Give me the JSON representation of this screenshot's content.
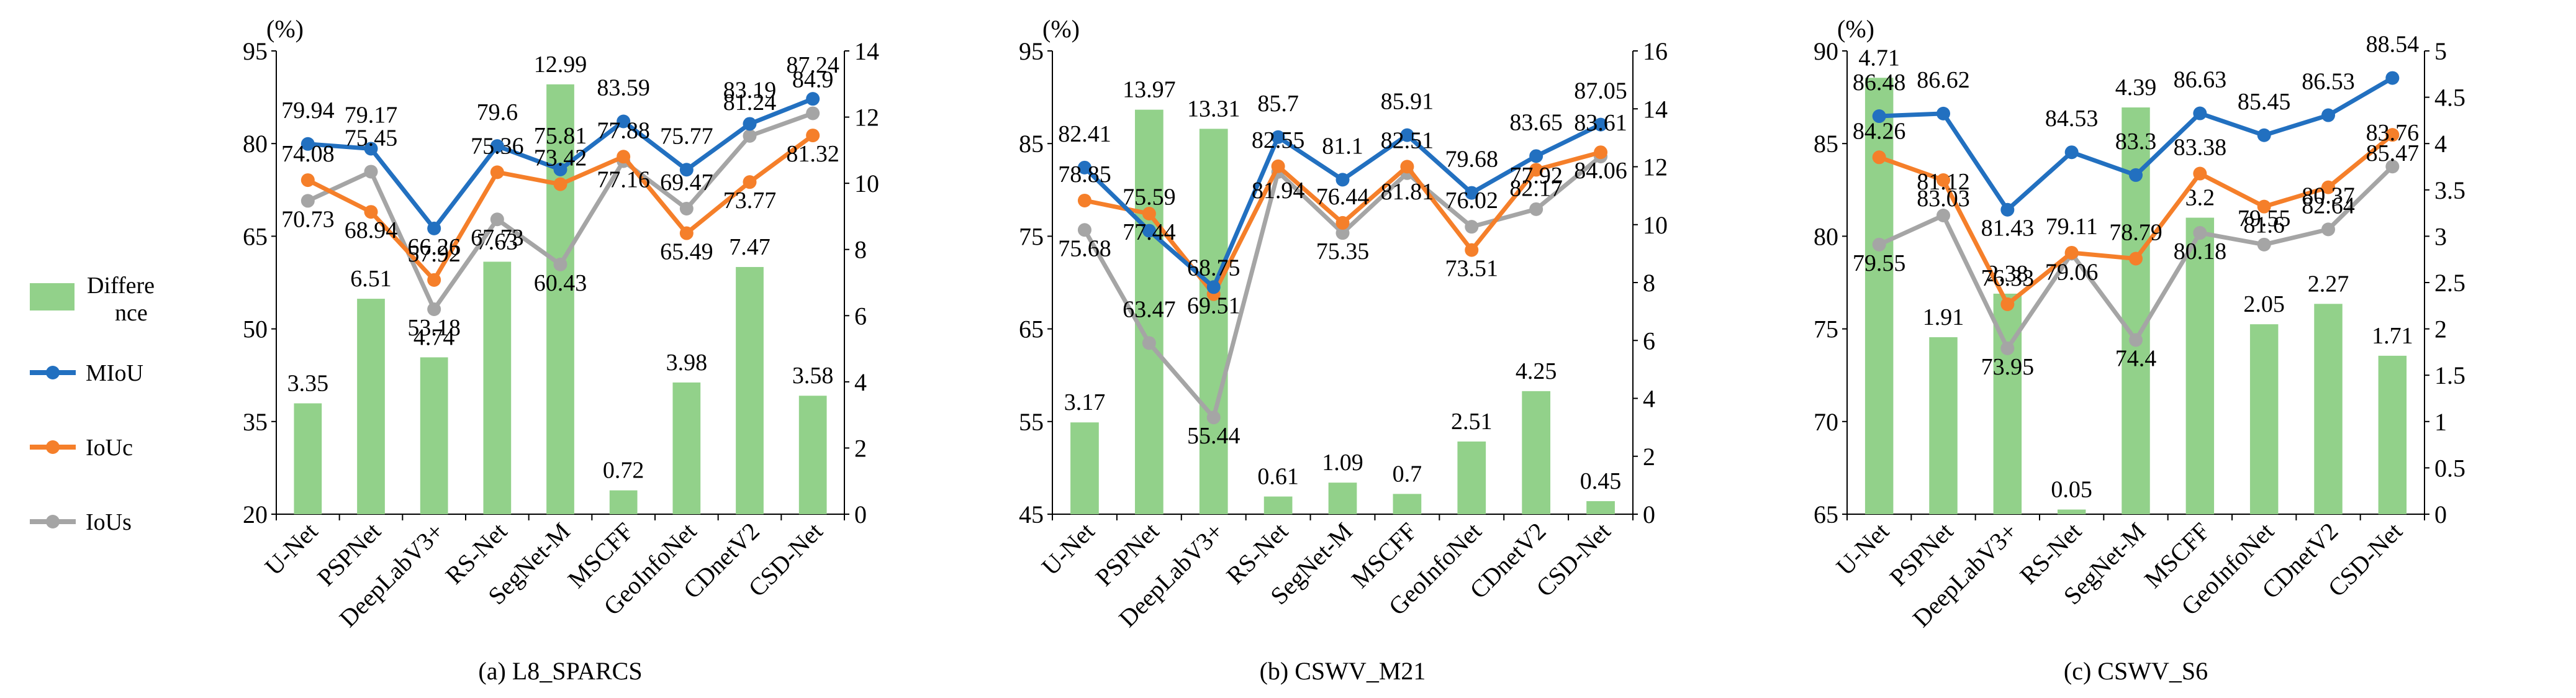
{
  "legend": {
    "items": [
      {
        "label": "Difference",
        "kind": "bar",
        "color": "#92d18a"
      },
      {
        "label": "MIoU",
        "kind": "line",
        "color": "#2270c0"
      },
      {
        "label": "IoUc",
        "kind": "line",
        "color": "#f57f2a"
      },
      {
        "label": "IoUs",
        "kind": "line",
        "color": "#a5a5a5"
      }
    ]
  },
  "chart_data": [
    {
      "type": "bar+line",
      "title": "(a) L8_SPARCS",
      "left_unit": "(%)",
      "categories": [
        "U-Net",
        "PSPNet",
        "DeepLabV3+",
        "RS-Net",
        "SegNet-M",
        "MSCFF",
        "GeoInfoNet",
        "CDnetV2",
        "CSD-Net"
      ],
      "left_axis": {
        "min": 20,
        "max": 95,
        "ticks": [
          20,
          35,
          50,
          65,
          80,
          95
        ]
      },
      "right_axis": {
        "min": 0,
        "max": 14,
        "ticks": [
          0,
          2,
          4,
          6,
          8,
          10,
          12,
          14
        ]
      },
      "bar_series": {
        "name": "Difference",
        "color": "#92d18a",
        "values": [
          3.35,
          6.51,
          4.74,
          7.63,
          12.99,
          0.72,
          3.98,
          7.47,
          3.58
        ]
      },
      "line_series": [
        {
          "name": "MIoU",
          "color": "#2270c0",
          "values": [
            79.94,
            79.17,
            66.26,
            79.6,
            75.81,
            83.59,
            75.77,
            83.19,
            87.24
          ]
        },
        {
          "name": "IoUc",
          "color": "#f57f2a",
          "values": [
            74.08,
            68.94,
            57.92,
            75.36,
            73.42,
            77.88,
            65.49,
            73.77,
            81.32
          ]
        },
        {
          "name": "IoUs",
          "color": "#a5a5a5",
          "values": [
            70.73,
            75.45,
            53.18,
            67.73,
            60.43,
            77.16,
            69.47,
            81.24,
            84.9
          ]
        }
      ],
      "line_labels": {
        "MIoU": [
          "79.94",
          "79.17",
          "66.26",
          "79.6",
          "75.81",
          "83.59",
          "75.77",
          "83.19",
          "87.24"
        ],
        "IoUc": [
          "74.08",
          "68.94",
          "57.92",
          "75.36",
          "73.42",
          "77.88",
          "65.49",
          "73.77",
          "81.32"
        ],
        "IoUs": [
          "70.73",
          "75.45",
          "53.18",
          "67.73",
          "60.43",
          "77.16",
          "69.47",
          "81.24",
          "84.9"
        ]
      },
      "bar_labels": [
        "3.35",
        "6.51",
        "4.74",
        "7.63",
        "12.99",
        "0.72",
        "3.98",
        "7.47",
        "3.58"
      ]
    },
    {
      "type": "bar+line",
      "title": "(b) CSWV_M21",
      "left_unit": "(%)",
      "categories": [
        "U-Net",
        "PSPNet",
        "DeepLabV3+",
        "RS-Net",
        "SegNet-M",
        "MSCFF",
        "GeoInfoNet",
        "CDnetV2",
        "CSD-Net"
      ],
      "left_axis": {
        "min": 45,
        "max": 95,
        "ticks": [
          45,
          55,
          65,
          75,
          85,
          95
        ]
      },
      "right_axis": {
        "min": 0,
        "max": 16,
        "ticks": [
          0,
          2,
          4,
          6,
          8,
          10,
          12,
          14,
          16
        ]
      },
      "bar_series": {
        "name": "Difference",
        "color": "#92d18a",
        "values": [
          3.17,
          13.97,
          13.31,
          0.61,
          1.09,
          0.7,
          2.51,
          4.25,
          0.45
        ]
      },
      "line_series": [
        {
          "name": "MIoU",
          "color": "#2270c0",
          "values": [
            82.41,
            75.59,
            69.51,
            85.7,
            81.1,
            85.91,
            79.68,
            83.65,
            87.05
          ]
        },
        {
          "name": "IoUc",
          "color": "#f57f2a",
          "values": [
            78.85,
            77.44,
            68.75,
            82.55,
            76.44,
            82.51,
            73.51,
            82.17,
            84.06
          ]
        },
        {
          "name": "IoUs",
          "color": "#a5a5a5",
          "values": [
            75.68,
            63.47,
            55.44,
            81.94,
            75.35,
            81.81,
            76.02,
            77.92,
            83.61
          ]
        }
      ],
      "line_labels": {
        "MIoU": [
          "82.41",
          "75.59",
          "69.51",
          "85.7",
          "81.1",
          "85.91",
          "79.68",
          "83.65",
          "87.05"
        ],
        "IoUc": [
          "78.85",
          "77.44",
          "68.75",
          "82.55",
          "76.44",
          "82.51",
          "73.51",
          "82.17",
          "84.06"
        ],
        "IoUs": [
          "75.68",
          "63.47",
          "55.44",
          "81.94",
          "75.35",
          "81.81",
          "76.02",
          "77.92",
          "83.61"
        ]
      },
      "bar_labels": [
        "3.17",
        "13.97",
        "13.31",
        "0.61",
        "1.09",
        "0.7",
        "2.51",
        "4.25",
        "0.45"
      ]
    },
    {
      "type": "bar+line",
      "title": "(c) CSWV_S6",
      "left_unit": "(%)",
      "categories": [
        "U-Net",
        "PSPNet",
        "DeepLabV3+",
        "RS-Net",
        "SegNet-M",
        "MSCFF",
        "GeoInfoNet",
        "CDnetV2",
        "CSD-Net"
      ],
      "left_axis": {
        "min": 65,
        "max": 90,
        "ticks": [
          65,
          70,
          75,
          80,
          85,
          90
        ]
      },
      "right_axis": {
        "min": 0,
        "max": 5,
        "ticks": [
          0,
          0.5,
          1,
          1.5,
          2,
          2.5,
          3,
          3.5,
          4,
          4.5,
          5
        ]
      },
      "bar_series": {
        "name": "Difference",
        "color": "#92d18a",
        "values": [
          4.71,
          1.91,
          2.38,
          0.05,
          4.39,
          3.2,
          2.05,
          2.27,
          1.71
        ]
      },
      "line_series": [
        {
          "name": "MIoU",
          "color": "#2270c0",
          "values": [
            86.48,
            86.62,
            81.43,
            84.53,
            83.3,
            86.63,
            85.45,
            86.53,
            88.54
          ]
        },
        {
          "name": "IoUc",
          "color": "#f57f2a",
          "values": [
            84.26,
            83.03,
            76.33,
            79.11,
            78.79,
            83.38,
            81.6,
            82.64,
            85.47
          ]
        },
        {
          "name": "IoUs",
          "color": "#a5a5a5",
          "values": [
            79.55,
            81.12,
            73.95,
            79.06,
            74.4,
            80.18,
            79.55,
            80.37,
            83.76
          ]
        }
      ],
      "line_labels": {
        "MIoU": [
          "86.48",
          "86.62",
          "81.43",
          "84.53",
          "83.3",
          "86.63",
          "85.45",
          "86.53",
          "88.54"
        ],
        "IoUc": [
          "84.26",
          "83.03",
          "76.33",
          "79.11",
          "78.79",
          "83.38",
          "81.6",
          "82.64",
          "85.47"
        ],
        "IoUs": [
          "79.55",
          "81.12",
          "73.95",
          "79.06",
          "74.4",
          "80.18",
          "79.55",
          "80.37",
          "83.76"
        ]
      },
      "bar_labels": [
        "4.71",
        "1.91",
        "2.38",
        "0.05",
        "4.39",
        "3.2",
        "2.05",
        "2.27",
        "1.71"
      ]
    }
  ]
}
